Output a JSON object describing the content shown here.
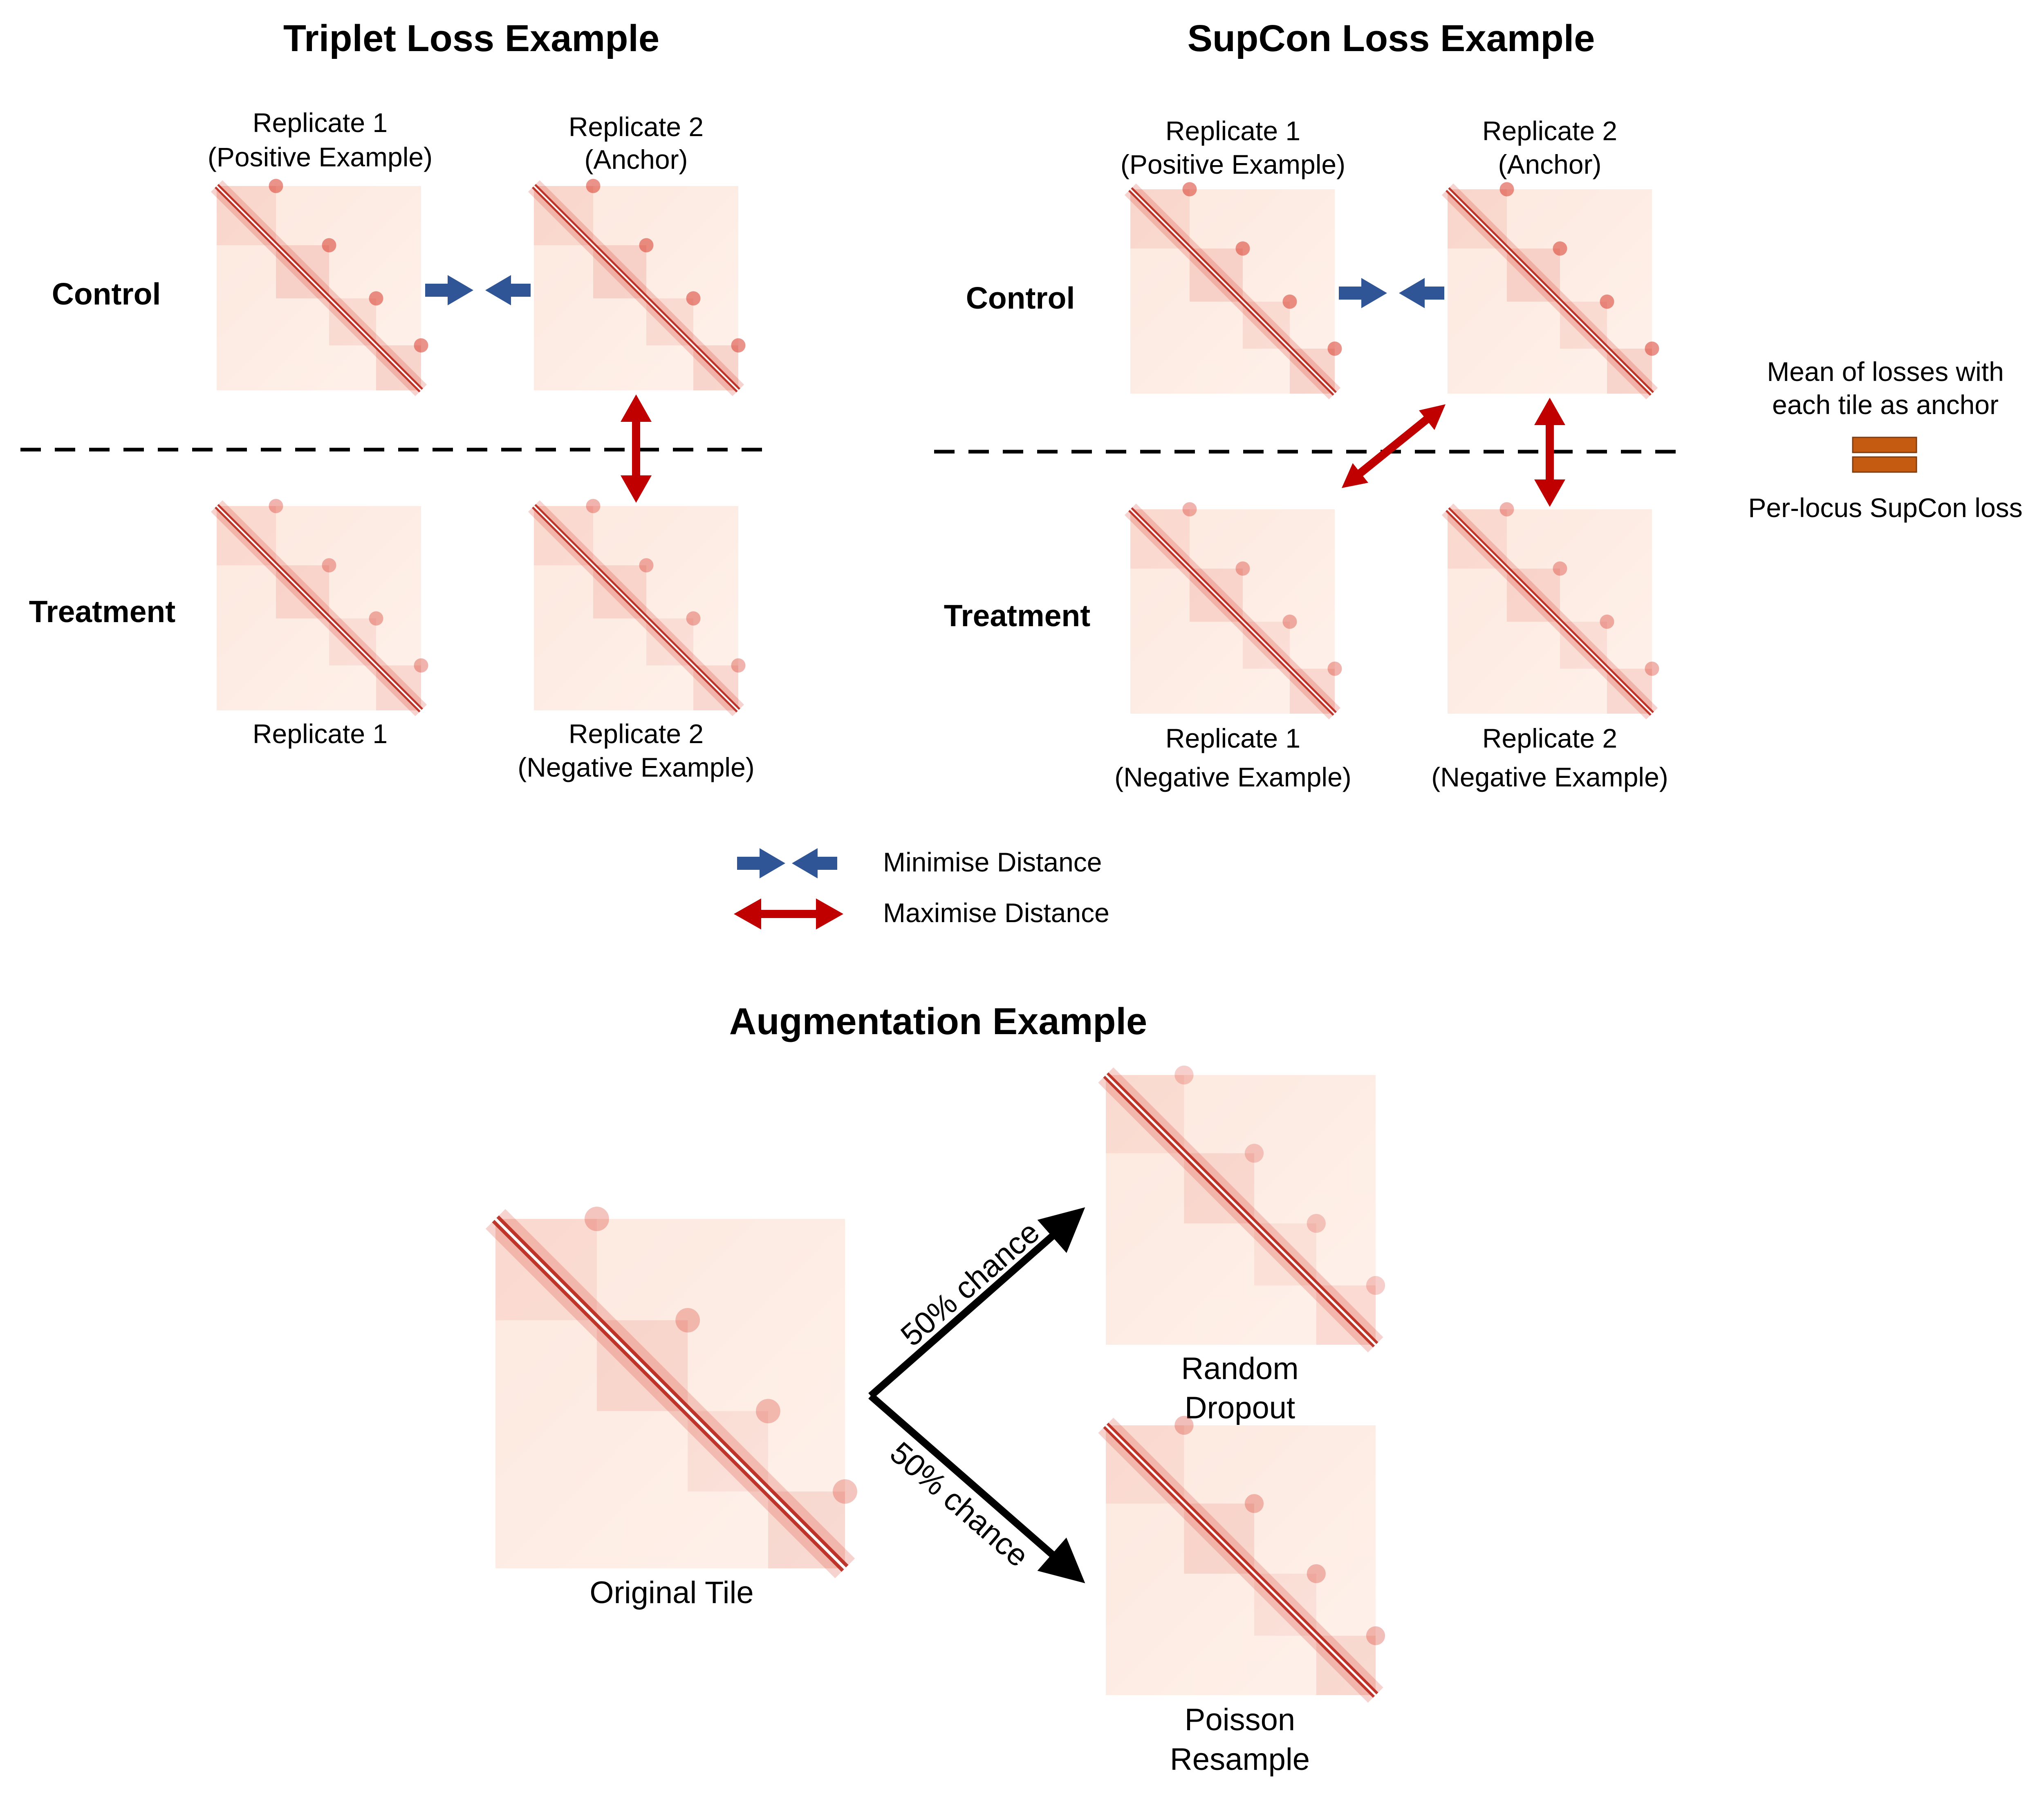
{
  "triplet": {
    "title": "Triplet Loss Example",
    "row_control": "Control",
    "row_treatment": "Treatment",
    "ctrl_rep1_line1": "Replicate 1",
    "ctrl_rep1_line2": "(Positive Example)",
    "ctrl_rep2_line1": "Replicate 2",
    "ctrl_rep2_line2": "(Anchor)",
    "treat_rep1_line1": "Replicate 1",
    "treat_rep2_line1": "Replicate 2",
    "treat_rep2_line2": "(Negative Example)"
  },
  "supcon": {
    "title": "SupCon Loss Example",
    "row_control": "Control",
    "row_treatment": "Treatment",
    "ctrl_rep1_line1": "Replicate 1",
    "ctrl_rep1_line2": "(Positive Example)",
    "ctrl_rep2_line1": "Replicate 2",
    "ctrl_rep2_line2": "(Anchor)",
    "treat_rep1_line1": "Replicate 1",
    "treat_rep1_line2": "(Negative Example)",
    "treat_rep2_line1": "Replicate 2",
    "treat_rep2_line2": "(Negative Example)",
    "side_note_line1": "Mean of losses with",
    "side_note_line2": "each tile as anchor",
    "side_note_result": "Per-locus SupCon loss"
  },
  "legend": {
    "minimise": "Minimise Distance",
    "maximise": "Maximise Distance"
  },
  "augmentation": {
    "title": "Augmentation Example",
    "original": "Original Tile",
    "branch_up": "50% chance",
    "branch_down": "50% chance",
    "dropout_line1": "Random",
    "dropout_line2": "Dropout",
    "poisson_line1": "Poisson",
    "poisson_line2": "Resample"
  },
  "colors": {
    "minimise_arrow": "#2f5597",
    "maximise_arrow": "#c00000",
    "equals_sign": "#c55a11",
    "tile_background": "#fdeee6",
    "tile_signal": "#d93a2b"
  }
}
